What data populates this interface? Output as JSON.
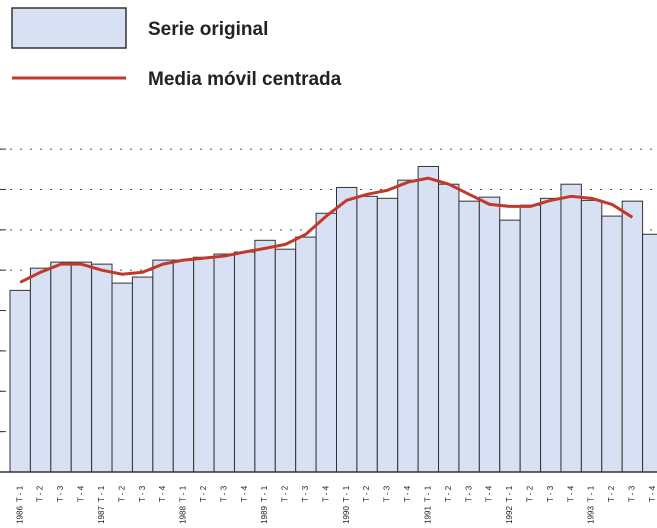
{
  "chart_data": {
    "type": "bar",
    "categories": [
      "T - 1",
      "T - 2",
      "T - 3",
      "T - 4",
      "T - 1",
      "T - 2",
      "T - 3",
      "T - 4",
      "T - 1",
      "T - 2",
      "T - 3",
      "T - 4",
      "T - 1",
      "T - 2",
      "T - 3",
      "T - 4",
      "T - 1",
      "T - 2",
      "T - 3",
      "T - 4",
      "T - 1",
      "T - 2",
      "T - 3",
      "T - 4",
      "T - 1",
      "T - 2",
      "T - 3",
      "T - 4",
      "T - 1",
      "T - 2",
      "T - 3",
      "T - 4"
    ],
    "years": [
      "1986",
      "1987",
      "1988",
      "1989",
      "1990",
      "1991",
      "1992",
      "1993"
    ],
    "series": [
      {
        "name": "Serie original",
        "type": "bar",
        "color": "#d7e1f3",
        "values": [
          4.5,
          5.05,
          5.2,
          5.2,
          5.15,
          4.68,
          4.83,
          5.25,
          5.25,
          5.32,
          5.4,
          5.45,
          5.74,
          5.52,
          5.82,
          6.41,
          7.05,
          6.83,
          6.78,
          7.23,
          7.57,
          7.13,
          6.71,
          6.81,
          6.24,
          6.61,
          6.78,
          7.13,
          6.73,
          6.34,
          6.71,
          5.89
        ]
      },
      {
        "name": "Media móvil centrada",
        "type": "line",
        "color": "#c0392b",
        "values": [
          4.7,
          4.95,
          5.15,
          5.15,
          5.0,
          4.9,
          4.95,
          5.15,
          5.25,
          5.3,
          5.35,
          5.45,
          5.54,
          5.64,
          5.89,
          6.34,
          6.73,
          6.88,
          6.98,
          7.18,
          7.28,
          7.13,
          6.88,
          6.63,
          6.58,
          6.58,
          6.73,
          6.83,
          6.78,
          6.63,
          6.31,
          null
        ]
      }
    ],
    "ylim": [
      0,
      8.25
    ],
    "yticks": [
      0,
      1,
      2,
      3,
      4,
      5,
      6,
      7,
      8
    ],
    "grid": true
  }
}
